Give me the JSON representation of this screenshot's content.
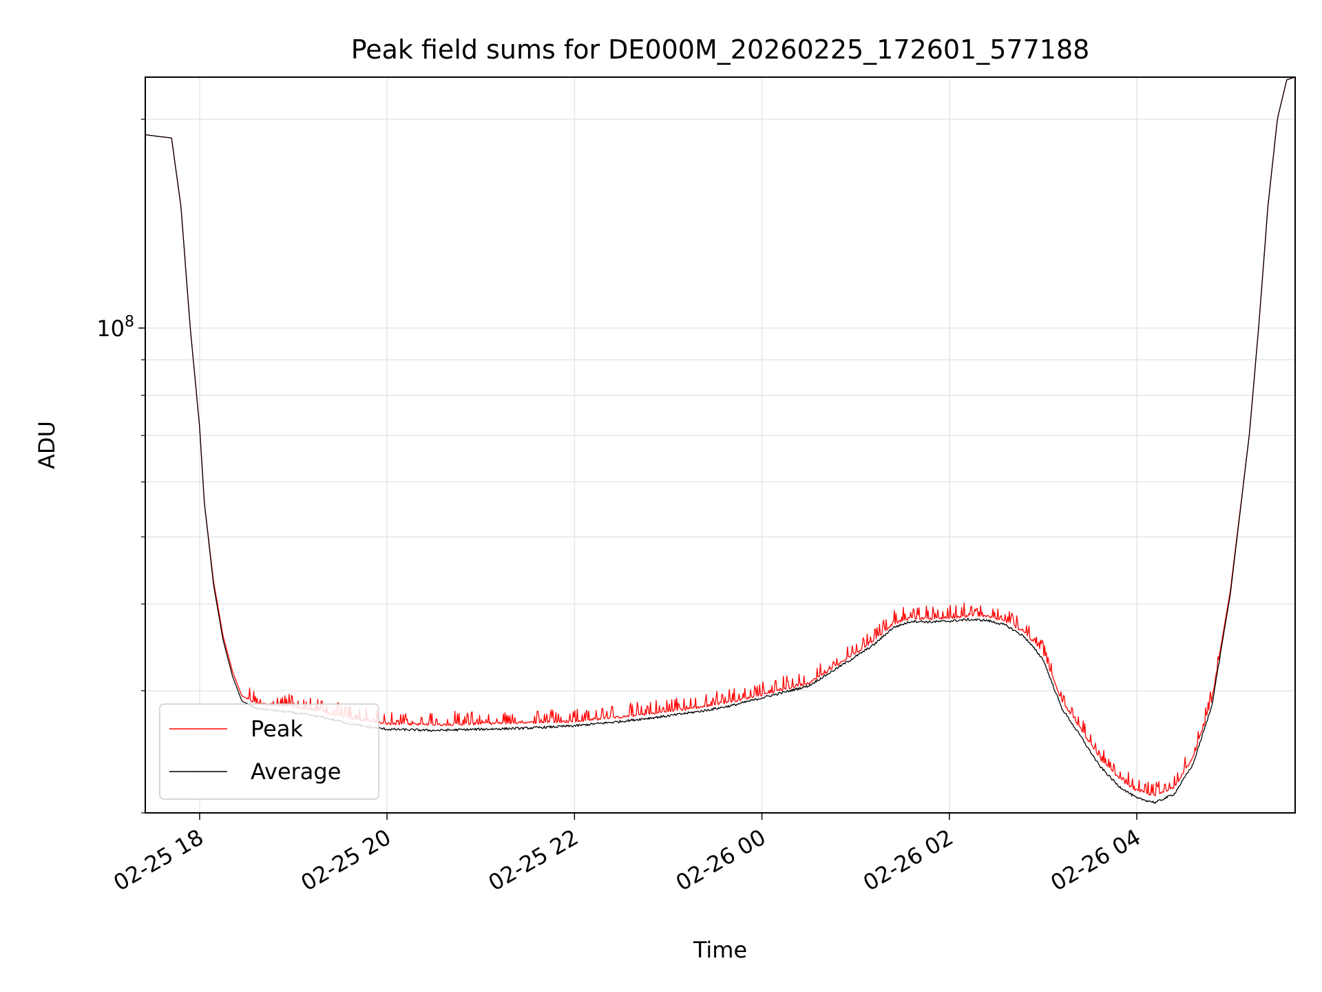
{
  "chart_data": {
    "type": "line",
    "title": "Peak field sums for DE000M_20260225_172601_577188",
    "xlabel": "Time",
    "ylabel": "ADU",
    "yscale": "log",
    "xlim_hours": [
      -0.58,
      11.69
    ],
    "ylim": [
      20000000,
      230000000
    ],
    "x_unit": "hours since 02-25 18:00",
    "x_ticks": [
      {
        "value": 0,
        "label": "02-25 18"
      },
      {
        "value": 2,
        "label": "02-25 20"
      },
      {
        "value": 4,
        "label": "02-25 22"
      },
      {
        "value": 6,
        "label": "02-26 00"
      },
      {
        "value": 8,
        "label": "02-26 02"
      },
      {
        "value": 10,
        "label": "02-26 04"
      }
    ],
    "y_major_ticks": [
      {
        "value": 100000000,
        "base": "10",
        "exponent": "8"
      }
    ],
    "y_minor_ticks": [
      20000000,
      30000000,
      40000000,
      50000000,
      60000000,
      70000000,
      80000000,
      90000000,
      200000000
    ],
    "grid": true,
    "legend": {
      "position": "lower-left",
      "entries": [
        "Peak",
        "Average"
      ]
    },
    "colors": {
      "Peak": "#ff0000",
      "Average": "#000000",
      "grid": "#e6e6e6"
    },
    "series": [
      {
        "name": "Peak",
        "x": [
          -0.58,
          -0.45,
          -0.3,
          -0.2,
          -0.1,
          0.0,
          0.05,
          0.15,
          0.25,
          0.35,
          0.45,
          0.6,
          0.8,
          1.0,
          1.3,
          1.6,
          1.8,
          2.0,
          2.5,
          3.0,
          3.5,
          4.0,
          4.5,
          5.0,
          5.4,
          5.7,
          6.0,
          6.3,
          6.5,
          6.7,
          7.0,
          7.2,
          7.4,
          7.6,
          7.8,
          8.0,
          8.2,
          8.4,
          8.6,
          8.8,
          9.0,
          9.2,
          9.4,
          9.6,
          9.8,
          10.0,
          10.2,
          10.4,
          10.6,
          10.8,
          11.0,
          11.2,
          11.3,
          11.4,
          11.5,
          11.6,
          11.69
        ],
        "y": [
          190000000,
          189000000,
          188000000,
          150000000,
          100000000,
          72000000,
          56000000,
          43000000,
          36000000,
          32000000,
          29500000,
          28800000,
          28600000,
          28400000,
          28000000,
          27400000,
          27100000,
          26900000,
          26800000,
          26900000,
          27000000,
          27100000,
          27500000,
          28000000,
          28500000,
          29000000,
          29600000,
          30300000,
          30800000,
          32000000,
          34000000,
          35500000,
          37500000,
          38200000,
          38100000,
          38200000,
          38500000,
          38400000,
          37800000,
          36500000,
          34000000,
          29000000,
          26500000,
          24000000,
          22500000,
          21500000,
          21200000,
          21800000,
          24000000,
          29000000,
          42000000,
          70000000,
          100000000,
          150000000,
          200000000,
          228000000,
          230000000
        ]
      },
      {
        "name": "Average",
        "x": [
          -0.58,
          -0.45,
          -0.3,
          -0.2,
          -0.1,
          0.0,
          0.05,
          0.15,
          0.25,
          0.35,
          0.45,
          0.6,
          0.8,
          1.0,
          1.3,
          1.6,
          1.8,
          2.0,
          2.5,
          3.0,
          3.5,
          4.0,
          4.5,
          5.0,
          5.4,
          5.7,
          6.0,
          6.3,
          6.5,
          6.7,
          7.0,
          7.2,
          7.4,
          7.6,
          7.8,
          8.0,
          8.2,
          8.4,
          8.6,
          8.8,
          9.0,
          9.2,
          9.4,
          9.6,
          9.8,
          10.0,
          10.2,
          10.4,
          10.6,
          10.8,
          11.0,
          11.2,
          11.3,
          11.4,
          11.5,
          11.6,
          11.69
        ],
        "y": [
          190000000,
          189000000,
          188000000,
          150000000,
          100000000,
          72000000,
          56000000,
          42500000,
          35500000,
          31500000,
          29000000,
          28300000,
          28100000,
          27900000,
          27500000,
          26900000,
          26600000,
          26400000,
          26300000,
          26400000,
          26500000,
          26700000,
          27100000,
          27600000,
          28100000,
          28600000,
          29300000,
          30000000,
          30500000,
          31700000,
          33600000,
          35000000,
          37000000,
          37800000,
          37700000,
          37800000,
          38000000,
          37900000,
          37300000,
          35900000,
          33300000,
          28300000,
          25800000,
          23400000,
          21900000,
          21000000,
          20700000,
          21300000,
          23500000,
          28500000,
          41500000,
          70000000,
          100000000,
          150000000,
          200000000,
          228000000,
          230000000
        ]
      }
    ]
  }
}
